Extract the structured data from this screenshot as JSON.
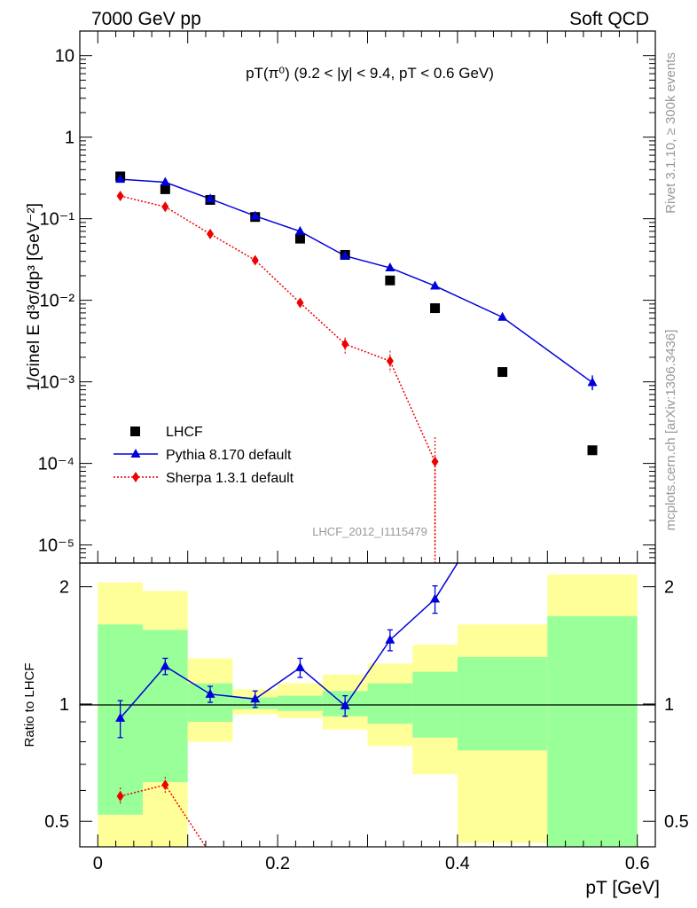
{
  "header": {
    "left": "7000 GeV pp",
    "right": "Soft QCD"
  },
  "side_labels": {
    "rivet": "Rivet 3.1.10, ≥ 300k events",
    "mcplots": "mcplots.cern.ch [arXiv:1306.3436]"
  },
  "analysis_id": "LHCF_2012_I1115479",
  "colors": {
    "pythia": "#0000dd",
    "sherpa": "#ee0000",
    "band_inner": "#99ff99",
    "band_outer": "#ffff99",
    "data": "#000000"
  },
  "chart_data": [
    {
      "type": "scatter",
      "panel": "main",
      "title": "pT(π⁰) (9.2 < |y| < 9.4, pT < 0.6 GeV)",
      "ylabel": "1/σinel E d³σ/dp³ [GeV⁻²]",
      "xlim": [
        -0.02,
        0.62
      ],
      "ylim": [
        6e-06,
        20
      ],
      "yscale": "log",
      "legend_placement": "lower-left",
      "yticks": [
        {
          "v": 10,
          "label": "10"
        },
        {
          "v": 1,
          "label": "1"
        },
        {
          "v": 0.1,
          "label": "10⁻¹"
        },
        {
          "v": 0.01,
          "label": "10⁻²"
        },
        {
          "v": 0.001,
          "label": "10⁻³"
        },
        {
          "v": 0.0001,
          "label": "10⁻⁴"
        },
        {
          "v": 1e-05,
          "label": "10⁻⁵"
        }
      ],
      "series": [
        {
          "name": "LHCF",
          "marker": "square",
          "x": [
            0.025,
            0.075,
            0.125,
            0.175,
            0.225,
            0.275,
            0.325,
            0.375,
            0.45,
            0.55
          ],
          "y": [
            0.33,
            0.23,
            0.17,
            0.105,
            0.057,
            0.036,
            0.0175,
            0.008,
            0.00132,
            0.000145
          ]
        },
        {
          "name": "Pythia 8.170 default",
          "marker": "triangle",
          "x": [
            0.025,
            0.075,
            0.125,
            0.175,
            0.225,
            0.275,
            0.325,
            0.375,
            0.45,
            0.55
          ],
          "y": [
            0.305,
            0.28,
            0.175,
            0.108,
            0.07,
            0.035,
            0.025,
            0.015,
            0.0062,
            0.00098
          ]
        },
        {
          "name": "Sherpa 1.3.1 default",
          "marker": "diamond",
          "x": [
            0.025,
            0.075,
            0.125,
            0.175,
            0.225,
            0.275,
            0.325,
            0.375
          ],
          "y": [
            0.19,
            0.14,
            0.065,
            0.031,
            0.0093,
            0.0029,
            0.0018,
            0.000105
          ]
        }
      ]
    },
    {
      "type": "line",
      "panel": "ratio",
      "ylabel": "Ratio to LHCF",
      "xlabel": "pT [GeV]",
      "xlim": [
        -0.02,
        0.62
      ],
      "ylim": [
        0.43,
        2.3
      ],
      "yscale": "log",
      "xticks": [
        {
          "v": 0,
          "label": "0"
        },
        {
          "v": 0.2,
          "label": "0.2"
        },
        {
          "v": 0.4,
          "label": "0.4"
        },
        {
          "v": 0.6,
          "label": "0.6"
        }
      ],
      "yticks": [
        {
          "v": 0.5,
          "label": "0.5"
        },
        {
          "v": 1,
          "label": "1"
        },
        {
          "v": 2,
          "label": "2"
        }
      ],
      "bands": {
        "edges": [
          0,
          0.05,
          0.1,
          0.15,
          0.2,
          0.25,
          0.3,
          0.35,
          0.4,
          0.5,
          0.6
        ],
        "outer_lo": [
          0.37,
          0.42,
          0.8,
          0.94,
          0.92,
          0.86,
          0.78,
          0.66,
          0.44,
          0.37,
          0.37
        ],
        "outer_hi": [
          2.05,
          1.95,
          1.31,
          1.09,
          1.13,
          1.19,
          1.27,
          1.42,
          1.6,
          2.15,
          2.15
        ],
        "inner_lo": [
          0.52,
          0.63,
          0.9,
          0.97,
          0.96,
          0.93,
          0.89,
          0.82,
          0.76,
          0.37,
          0.37
        ],
        "inner_hi": [
          1.6,
          1.55,
          1.13,
          1.04,
          1.05,
          1.08,
          1.13,
          1.21,
          1.32,
          1.68,
          1.68
        ]
      },
      "series": [
        {
          "name": "Pythia 8.170 default",
          "x": [
            0.025,
            0.075,
            0.125,
            0.175,
            0.225,
            0.275,
            0.325,
            0.375,
            0.4
          ],
          "y": [
            0.92,
            1.25,
            1.06,
            1.03,
            1.24,
            0.99,
            1.46,
            1.86,
            2.3
          ],
          "err": [
            0.1,
            0.06,
            0.05,
            0.05,
            0.07,
            0.06,
            0.09,
            0.15,
            0
          ]
        },
        {
          "name": "Sherpa 1.3.1 default",
          "x": [
            0.025,
            0.075,
            0.12
          ],
          "y": [
            0.58,
            0.62,
            0.43
          ],
          "err": [
            0.03,
            0.03,
            0
          ]
        }
      ]
    }
  ]
}
